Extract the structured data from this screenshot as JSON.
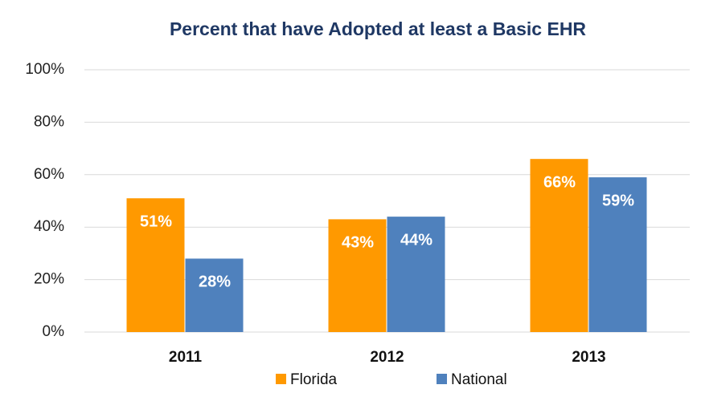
{
  "chart_data": {
    "type": "bar",
    "title": "Percent that have Adopted at least  a Basic EHR",
    "categories": [
      "2011",
      "2012",
      "2013"
    ],
    "series": [
      {
        "name": "Florida",
        "color": "#ff9900",
        "values": [
          51,
          43,
          66
        ],
        "value_labels": [
          "51%",
          "43%",
          "66%"
        ]
      },
      {
        "name": "National",
        "color": "#4f81bd",
        "values": [
          28,
          44,
          59
        ],
        "value_labels": [
          "28%",
          "44%",
          "59%"
        ]
      }
    ],
    "ylim": [
      0,
      100
    ],
    "yticks": [
      {
        "value": 0,
        "label": "0%"
      },
      {
        "value": 20,
        "label": "20%"
      },
      {
        "value": 40,
        "label": "40%"
      },
      {
        "value": 60,
        "label": "60%"
      },
      {
        "value": 80,
        "label": "80%"
      },
      {
        "value": 100,
        "label": "100%"
      }
    ],
    "grid": true,
    "legend": "bottom"
  }
}
